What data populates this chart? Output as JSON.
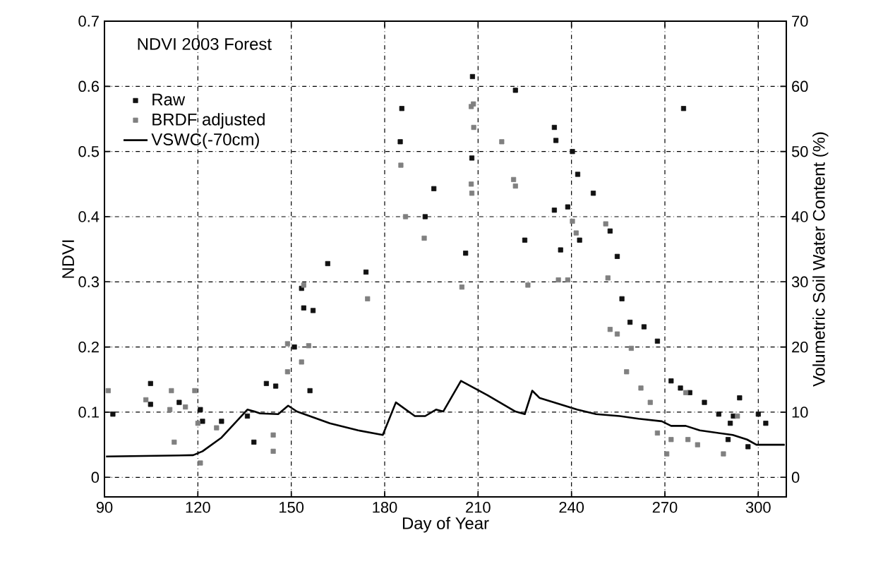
{
  "chart_data": {
    "type": "scatter",
    "title": "NDVI 2003 Forest",
    "xlabel": "Day of Year",
    "ylabel": "NDVI",
    "y2label": "Volumetric Soil Water Content (%)",
    "xlim": [
      90,
      309
    ],
    "xticks": [
      90,
      120,
      150,
      180,
      210,
      240,
      270,
      300
    ],
    "ylim": [
      -0.03,
      0.7
    ],
    "yticks": [
      0,
      0.1,
      0.2,
      0.3,
      0.4,
      0.5,
      0.6,
      0.7
    ],
    "y2lim": [
      -3,
      70
    ],
    "y2ticks": [
      0,
      10,
      20,
      30,
      40,
      50,
      60,
      70
    ],
    "grid": true,
    "legend": "top left",
    "series": [
      {
        "name": "Raw",
        "color": "#111111",
        "marker": "square",
        "x": [
          92.7,
          104.8,
          104.8,
          114,
          120.8,
          121.5,
          127.6,
          135.9,
          142,
          145,
          138,
          151,
          154,
          153.3,
          157,
          156,
          161.7,
          174,
          185.5,
          185,
          195.8,
          193,
          206,
          208.2,
          208,
          222,
          234.5,
          235,
          225,
          236.5,
          234.5,
          240.3,
          242,
          238.8,
          242.6,
          247,
          252.4,
          254.7,
          256.2,
          258.8,
          263.3,
          267.6,
          272,
          275,
          278,
          282.7,
          287.3,
          294,
          291,
          300,
          302.4,
          276,
          290.3,
          296.7,
          292
        ],
        "values": [
          0.097,
          0.144,
          0.112,
          0.115,
          0.104,
          0.086,
          0.086,
          0.094,
          0.144,
          0.14,
          0.054,
          0.2,
          0.26,
          0.29,
          0.256,
          0.133,
          0.328,
          0.315,
          0.566,
          0.515,
          0.443,
          0.4,
          0.344,
          0.615,
          0.49,
          0.594,
          0.537,
          0.517,
          0.364,
          0.349,
          0.41,
          0.5,
          0.465,
          0.415,
          0.364,
          0.436,
          0.378,
          0.339,
          0.274,
          0.238,
          0.231,
          0.209,
          0.148,
          0.137,
          0.13,
          0.115,
          0.097,
          0.122,
          0.083,
          0.097,
          0.083,
          0.566,
          0.058,
          0.047,
          0.094
        ]
      },
      {
        "name": "BRDF adjusted",
        "color": "#808080",
        "marker": "square",
        "x": [
          91.2,
          103.3,
          111,
          111.5,
          116,
          119,
          120,
          112.4,
          120.8,
          126,
          144.2,
          144.2,
          148.8,
          153.3,
          148.8,
          155.6,
          174.5,
          154,
          185.2,
          186.7,
          192.7,
          204.8,
          207.8,
          208.6,
          207.8,
          208.5,
          208,
          217.6,
          221.4,
          222,
          226,
          235.8,
          238.8,
          240.3,
          241.5,
          251,
          251.7,
          252.4,
          254.7,
          259.2,
          257.7,
          262.3,
          265.3,
          267.6,
          270.6,
          276.7,
          277.4,
          280.5,
          272,
          288.8,
          293.3
        ],
        "values": [
          0.133,
          0.119,
          0.104,
          0.133,
          0.108,
          0.133,
          0.083,
          0.054,
          0.022,
          0.076,
          0.065,
          0.04,
          0.162,
          0.177,
          0.205,
          0.202,
          0.274,
          0.295,
          0.479,
          0.4,
          0.367,
          0.292,
          0.569,
          0.537,
          0.45,
          0.573,
          0.436,
          0.515,
          0.457,
          0.447,
          0.295,
          0.303,
          0.303,
          0.393,
          0.375,
          0.389,
          0.306,
          0.227,
          0.22,
          0.198,
          0.162,
          0.137,
          0.115,
          0.068,
          0.036,
          0.13,
          0.058,
          0.05,
          0.058,
          0.036,
          0.094
        ]
      },
      {
        "name": "VSWC(-70cm)",
        "color": "#000000",
        "type": "line",
        "marker": "none",
        "axis": "y2",
        "x": [
          90.5,
          118.5,
          121.5,
          127.6,
          135.9,
          138.2,
          140,
          145.8,
          149,
          151.8,
          162.4,
          171.5,
          179.4,
          183.6,
          189.7,
          193,
          196.5,
          198.8,
          204.5,
          213,
          222,
          225,
          227.4,
          229.7,
          236.5,
          241.8,
          247.9,
          255.5,
          261.5,
          269,
          272,
          276.7,
          281.2,
          291.8,
          296.4,
          299.4,
          308.5
        ],
        "values": [
          3.2,
          3.4,
          4.0,
          6.1,
          10.4,
          10.1,
          9.8,
          9.7,
          11.0,
          10.1,
          8.3,
          7.2,
          6.5,
          11.5,
          9.4,
          9.4,
          10.4,
          10.1,
          14.8,
          12.6,
          10.1,
          9.7,
          13.3,
          12.2,
          11.2,
          10.4,
          9.7,
          9.4,
          9.0,
          8.6,
          7.9,
          7.9,
          7.2,
          6.5,
          5.8,
          5.0,
          5.0
        ]
      }
    ]
  }
}
